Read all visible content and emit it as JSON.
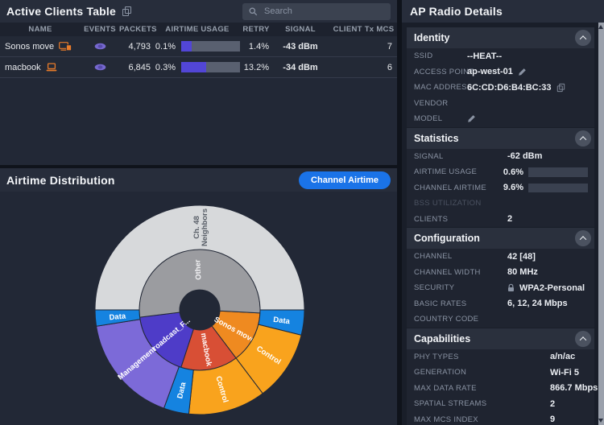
{
  "clients_table": {
    "title": "Active Clients Table",
    "search_placeholder": "Search",
    "columns": [
      "NAME",
      "EVENTS",
      "PACKETS",
      "AIRTIME USAGE",
      "RETRY",
      "SIGNAL",
      "CLIENT Tx MCS"
    ],
    "rows": [
      {
        "name": "Sonos move",
        "device_icon": "speaker-device-icon",
        "events_icon": "eye-icon",
        "packets": "4,793",
        "airtime_pct": "0.1%",
        "airtime_bar_pct": 18,
        "retry": "1.4%",
        "signal": "-43 dBm",
        "client_tx_mcs": "7"
      },
      {
        "name": "macbook",
        "device_icon": "laptop-icon",
        "events_icon": "eye-icon",
        "packets": "6,845",
        "airtime_pct": "0.3%",
        "airtime_bar_pct": 42,
        "retry": "13.2%",
        "signal": "-34 dBm",
        "client_tx_mcs": "6"
      }
    ]
  },
  "airtime_panel": {
    "title": "Airtime Distribution",
    "button_label": "Channel Airtime",
    "button_color": "#1a73e8"
  },
  "chart_data": {
    "type": "sunburst",
    "title": "Airtime Distribution",
    "center": {
      "hole_radius": 25,
      "inner_ring_outer_radius": 75,
      "outer_ring_outer_radius": 130
    },
    "segments": [
      {
        "ring": "inner",
        "name": "Sonos move",
        "start": 93,
        "end": 143,
        "color": "#ef8a20",
        "label_angle": 119,
        "label_rot": 29,
        "label_color": "#ffffff"
      },
      {
        "ring": "inner",
        "name": "macbook",
        "start": 143,
        "end": 198,
        "color": "#d84f35",
        "label_angle": 170,
        "label_rot": 80,
        "label_color": "#ffffff"
      },
      {
        "ring": "inner",
        "name": "Broadcast_F...",
        "start": 198,
        "end": 263,
        "color": "#4e3cc8",
        "label_angle": 230,
        "label_rot": -40,
        "label_color": "#ffffff"
      },
      {
        "ring": "inner",
        "name": "Other",
        "start": 263,
        "end": 453,
        "color": "#9b9ca0",
        "label_angle": 357,
        "label_rot": -93,
        "label_color": "#f2f2f4"
      },
      {
        "ring": "outer",
        "name": "Data",
        "start": 90,
        "end": 104,
        "color": "#1583e0",
        "label_angle": 97,
        "label_rot": 7,
        "label_color": "#ffffff"
      },
      {
        "ring": "outer",
        "name": "Control",
        "start": 104,
        "end": 143,
        "color": "#f9a31d",
        "label_angle": 123,
        "label_rot": 33,
        "label_color": "#ffffff"
      },
      {
        "ring": "outer",
        "name": "Control",
        "start": 143,
        "end": 186,
        "color": "#f9a31d",
        "label_angle": 164,
        "label_rot": 74,
        "label_color": "#ffffff"
      },
      {
        "ring": "outer",
        "name": "Data",
        "start": 186,
        "end": 200,
        "color": "#1583e0",
        "label_angle": 193,
        "label_rot": -77,
        "label_color": "#ffffff"
      },
      {
        "ring": "outer",
        "name": "Management",
        "start": 200,
        "end": 261,
        "color": "#7c6ad8",
        "label_angle": 230,
        "label_rot": -40,
        "label_color": "#ffffff"
      },
      {
        "ring": "outer",
        "name": "Data",
        "start": 261,
        "end": 270,
        "color": "#1583e0",
        "label_angle": 265.5,
        "label_rot": -5,
        "label_color": "#ffffff"
      },
      {
        "ring": "outer",
        "name": "Ch. 48 Neighbors",
        "lines": [
          "Ch. 48",
          "Neighbors"
        ],
        "start": 270,
        "end": 450,
        "color": "#d7d9db",
        "label_angle": 0,
        "label_rot": -90,
        "label_color": "#5a6069"
      }
    ]
  },
  "details": {
    "title": "AP Radio Details",
    "sections": [
      {
        "title": "Identity",
        "rows": [
          {
            "label": "SSID",
            "value": "--HEAT--"
          },
          {
            "label": "ACCESS POINT",
            "value": "ap-west-01",
            "icons": [
              "edit"
            ]
          },
          {
            "label": "MAC ADDRESS",
            "value": "6C:CD:D6:B4:BC:33",
            "icons": [
              "copy"
            ]
          },
          {
            "label": "VENDOR",
            "value": ""
          },
          {
            "label": "MODEL",
            "value": "",
            "icons": [
              "edit"
            ]
          }
        ]
      },
      {
        "title": "Statistics",
        "rows": [
          {
            "label": "SIGNAL",
            "value": "-62 dBm"
          },
          {
            "label": "AIRTIME USAGE",
            "value": "0.6%",
            "bar_pct": 9
          },
          {
            "label": "CHANNEL AIRTIME",
            "value": "9.6%",
            "bar_pct": 10
          },
          {
            "label": "BSS UTILIZATION",
            "value": "",
            "dim": true
          },
          {
            "label": "CLIENTS",
            "value": "2"
          }
        ]
      },
      {
        "title": "Configuration",
        "rows": [
          {
            "label": "CHANNEL",
            "value": "42 [48]"
          },
          {
            "label": "CHANNEL WIDTH",
            "value": "80 MHz"
          },
          {
            "label": "SECURITY",
            "value": "WPA2-Personal",
            "icons_before": [
              "lock"
            ]
          },
          {
            "label": "BASIC RATES",
            "value": "6, 12, 24 Mbps"
          },
          {
            "label": "COUNTRY CODE",
            "value": ""
          }
        ]
      },
      {
        "title": "Capabilities",
        "rows": [
          {
            "label": "PHY TYPES",
            "value": "a/n/ac"
          },
          {
            "label": "GENERATION",
            "value": "Wi-Fi 5"
          },
          {
            "label": "MAX DATA RATE",
            "value": "866.7 Mbps"
          },
          {
            "label": "SPATIAL STREAMS",
            "value": "2"
          },
          {
            "label": "MAX MCS INDEX",
            "value": "9"
          }
        ]
      }
    ]
  }
}
